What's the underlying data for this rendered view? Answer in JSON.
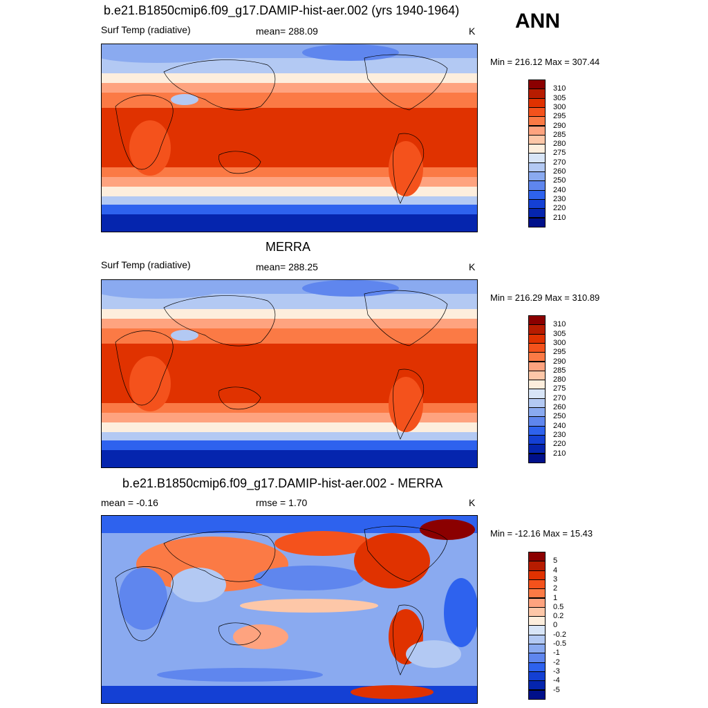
{
  "season": "ANN",
  "panels": [
    {
      "id": "model",
      "title": "b.e21.B1850cmip6.f09_g17.DAMIP-hist-aer.002 (yrs 1940-1964)",
      "left_label": "Surf Temp (radiative)",
      "center_label": "mean= 288.09",
      "units": "K",
      "minmax": "Min = 216.12 Max = 307.44",
      "colorbar": {
        "labels": [
          "310",
          "305",
          "300",
          "295",
          "290",
          "285",
          "280",
          "275",
          "270",
          "260",
          "250",
          "240",
          "230",
          "220",
          "210"
        ],
        "colors": [
          "#8b0000",
          "#b71c00",
          "#e03200",
          "#f4521c",
          "#fb7a45",
          "#fea37f",
          "#fdc7a8",
          "#fdeedd",
          "#d8e5f7",
          "#b3c9f3",
          "#8aaaf0",
          "#5f86ee",
          "#2e62ee",
          "#1440d4",
          "#0525ae",
          "#00108a"
        ]
      }
    },
    {
      "id": "obs",
      "title": "MERRA",
      "left_label": "Surf Temp (radiative)",
      "center_label": "mean= 288.25",
      "units": "K",
      "minmax": "Min = 216.29 Max = 310.89",
      "colorbar": {
        "labels": [
          "310",
          "305",
          "300",
          "295",
          "290",
          "285",
          "280",
          "275",
          "270",
          "260",
          "250",
          "240",
          "230",
          "220",
          "210"
        ],
        "colors": [
          "#8b0000",
          "#b71c00",
          "#e03200",
          "#f4521c",
          "#fb7a45",
          "#fea37f",
          "#fdc7a8",
          "#fdeedd",
          "#d8e5f7",
          "#b3c9f3",
          "#8aaaf0",
          "#5f86ee",
          "#2e62ee",
          "#1440d4",
          "#0525ae",
          "#00108a"
        ]
      }
    },
    {
      "id": "diff",
      "title": "b.e21.B1850cmip6.f09_g17.DAMIP-hist-aer.002 - MERRA",
      "left_label": "mean =  -0.16",
      "center_label": "rmse =   1.70",
      "units": "K",
      "minmax": "Min = -12.16 Max =  15.43",
      "colorbar": {
        "labels": [
          "5",
          "4",
          "3",
          "2",
          "1",
          "0.5",
          "0.2",
          "0",
          "-0.2",
          "-0.5",
          "-1",
          "-2",
          "-3",
          "-4",
          "-5"
        ],
        "colors": [
          "#8b0000",
          "#b71c00",
          "#e03200",
          "#f4521c",
          "#fb7a45",
          "#fea37f",
          "#fdc7a8",
          "#fdeedd",
          "#d8e5f7",
          "#b3c9f3",
          "#8aaaf0",
          "#5f86ee",
          "#2e62ee",
          "#1440d4",
          "#0525ae",
          "#00108a"
        ]
      }
    }
  ]
}
